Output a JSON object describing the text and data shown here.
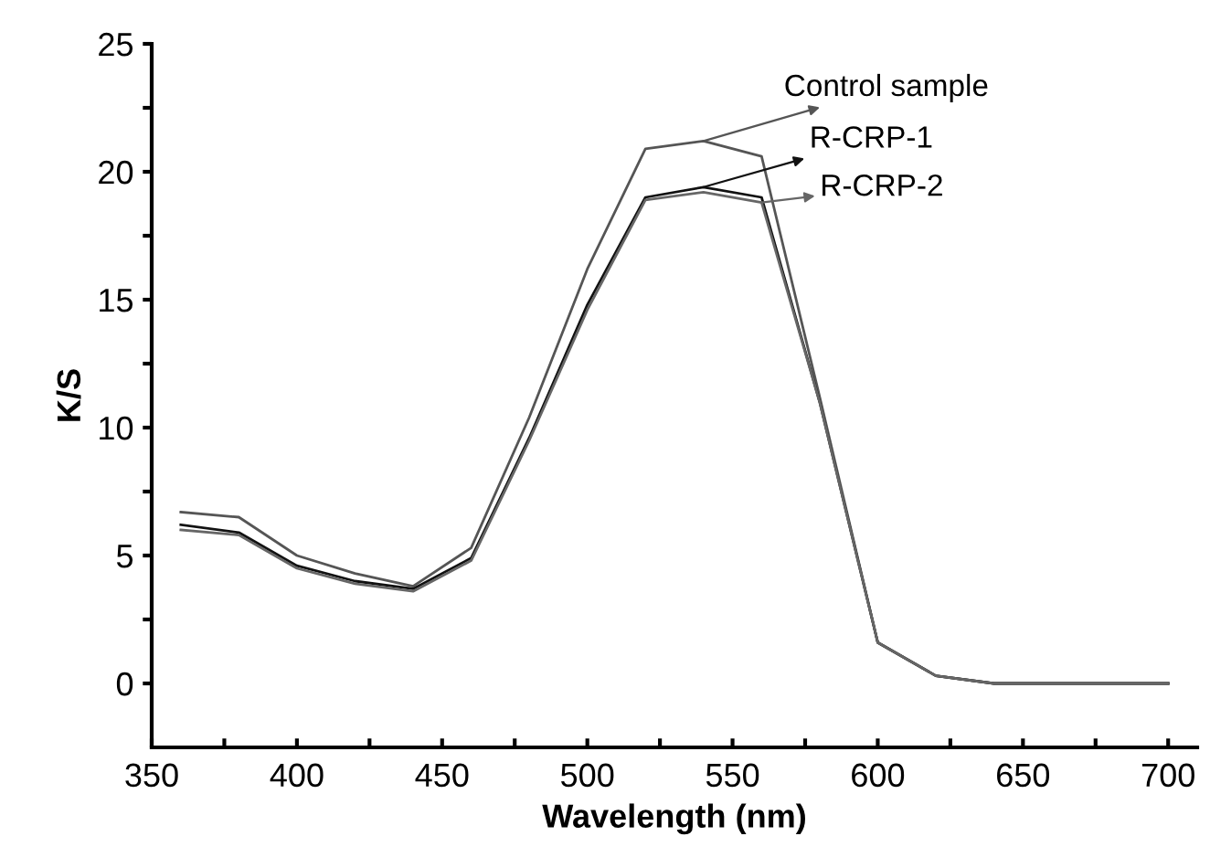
{
  "chart_data": {
    "type": "line",
    "xlabel": "Wavelength (nm)",
    "ylabel": "K/S",
    "x": [
      360,
      380,
      400,
      420,
      440,
      460,
      480,
      500,
      520,
      540,
      560,
      580,
      600,
      620,
      640,
      660,
      680,
      700
    ],
    "series": [
      {
        "name": "Control sample",
        "color": "#555555",
        "values": [
          6.7,
          6.5,
          5.0,
          4.3,
          3.8,
          5.3,
          10.4,
          16.2,
          20.9,
          21.2,
          20.6,
          11.2,
          1.6,
          0.3,
          0.0,
          0.0,
          0.0,
          0.0
        ]
      },
      {
        "name": "R-CRP-1",
        "color": "#111111",
        "values": [
          6.2,
          5.9,
          4.6,
          4.0,
          3.7,
          4.9,
          9.6,
          14.8,
          19.0,
          19.4,
          19.0,
          11.0,
          1.6,
          0.3,
          0.0,
          0.0,
          0.0,
          0.0
        ]
      },
      {
        "name": "R-CRP-2",
        "color": "#666666",
        "values": [
          6.0,
          5.8,
          4.5,
          3.9,
          3.6,
          4.8,
          9.5,
          14.6,
          18.9,
          19.2,
          18.8,
          11.0,
          1.6,
          0.3,
          0.0,
          0.0,
          0.0,
          0.0
        ]
      }
    ],
    "xlim": [
      350,
      710
    ],
    "xticks": [
      350,
      {
        "value": 375,
        "label": null
      },
      400,
      {
        "value": 425,
        "label": null
      },
      450,
      {
        "value": 475,
        "label": null
      },
      500,
      {
        "value": 525,
        "label": null
      },
      550,
      {
        "value": 575,
        "label": null
      },
      600,
      {
        "value": 625,
        "label": null
      },
      650,
      {
        "value": 675,
        "label": null
      },
      700
    ],
    "ylim": [
      -2.5,
      25
    ],
    "yticks": [
      0,
      {
        "value": 2.5,
        "label": null
      },
      5,
      {
        "value": 7.5,
        "label": null
      },
      10,
      {
        "value": 12.5,
        "label": null
      },
      15,
      {
        "value": 17.5,
        "label": null
      },
      20,
      {
        "value": 22.5,
        "label": null
      },
      25
    ],
    "grid": false,
    "legend": "top right",
    "marker": "none",
    "line_style": "solid"
  }
}
